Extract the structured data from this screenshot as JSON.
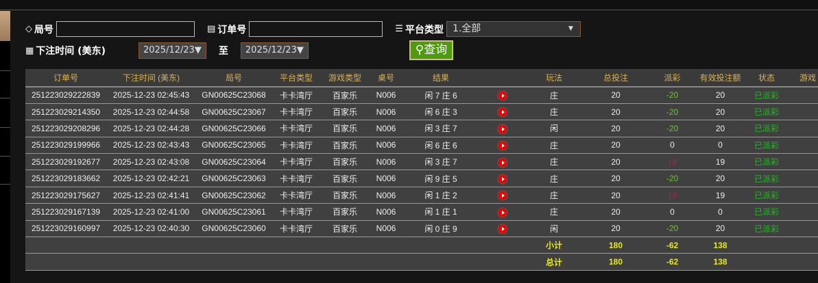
{
  "filters": {
    "round_label": "局号",
    "order_label": "订单号",
    "platform_label": "平台类型",
    "platform_value": "1.全部",
    "time_label": "下注时间 (美东)",
    "date_from": "2025/12/23▼",
    "to_label": "至",
    "date_to": "2025/12/23▼",
    "query_button": "查询"
  },
  "table": {
    "headers": [
      "订单号",
      "下注时间 (美东)",
      "局号",
      "平台类型",
      "游戏类型",
      "桌号",
      "结果",
      "",
      "玩法",
      "总投注",
      "派彩",
      "有效投注额",
      "状态",
      "游戏"
    ],
    "rows": [
      [
        "251223029222839",
        "2025-12-23 02:45:43",
        "GN00625C23068",
        "卡卡湾厅",
        "百家乐",
        "N006",
        "闲 7 庄 6",
        "庄",
        "20",
        "-20",
        "20",
        "已派彩"
      ],
      [
        "251223029214350",
        "2025-12-23 02:44:58",
        "GN00625C23067",
        "卡卡湾厅",
        "百家乐",
        "N006",
        "闲 6 庄 3",
        "庄",
        "20",
        "-20",
        "20",
        "已派彩"
      ],
      [
        "251223029208296",
        "2025-12-23 02:44:28",
        "GN00625C23066",
        "卡卡湾厅",
        "百家乐",
        "N006",
        "闲 3 庄 7",
        "闲",
        "20",
        "-20",
        "20",
        "已派彩"
      ],
      [
        "251223029199966",
        "2025-12-23 02:43:43",
        "GN00625C23065",
        "卡卡湾厅",
        "百家乐",
        "N006",
        "闲 6 庄 6",
        "庄",
        "20",
        "0",
        "0",
        "已派彩"
      ],
      [
        "251223029192677",
        "2025-12-23 02:43:08",
        "GN00625C23064",
        "卡卡湾厅",
        "百家乐",
        "N006",
        "闲 3 庄 7",
        "庄",
        "20",
        "19",
        "19",
        "已派彩"
      ],
      [
        "251223029183662",
        "2025-12-23 02:42:21",
        "GN00625C23063",
        "卡卡湾厅",
        "百家乐",
        "N006",
        "闲 9 庄 5",
        "庄",
        "20",
        "-20",
        "20",
        "已派彩"
      ],
      [
        "251223029175627",
        "2025-12-23 02:41:41",
        "GN00625C23062",
        "卡卡湾厅",
        "百家乐",
        "N006",
        "闲 1 庄 2",
        "庄",
        "20",
        "19",
        "19",
        "已派彩"
      ],
      [
        "251223029167139",
        "2025-12-23 02:41:00",
        "GN00625C23061",
        "卡卡湾厅",
        "百家乐",
        "N006",
        "闲 1 庄 1",
        "庄",
        "20",
        "0",
        "0",
        "已派彩"
      ],
      [
        "251223029160997",
        "2025-12-23 02:40:30",
        "GN00625C23060",
        "卡卡湾厅",
        "百家乐",
        "N006",
        "闲 0 庄 9",
        "闲",
        "20",
        "-20",
        "20",
        "已派彩"
      ]
    ],
    "subtotal": {
      "label": "小计",
      "total_bet": "180",
      "payout": "-62",
      "valid_bet": "138"
    },
    "grand_total": {
      "label": "总计",
      "total_bet": "180",
      "payout": "-62",
      "valid_bet": "138"
    }
  },
  "colors": {
    "negative": "#66cc22",
    "positive": "#b0203c",
    "status": "#22bb22",
    "header": "#d8b25a",
    "sum": "#e8e820",
    "button": "#4e9a10"
  }
}
